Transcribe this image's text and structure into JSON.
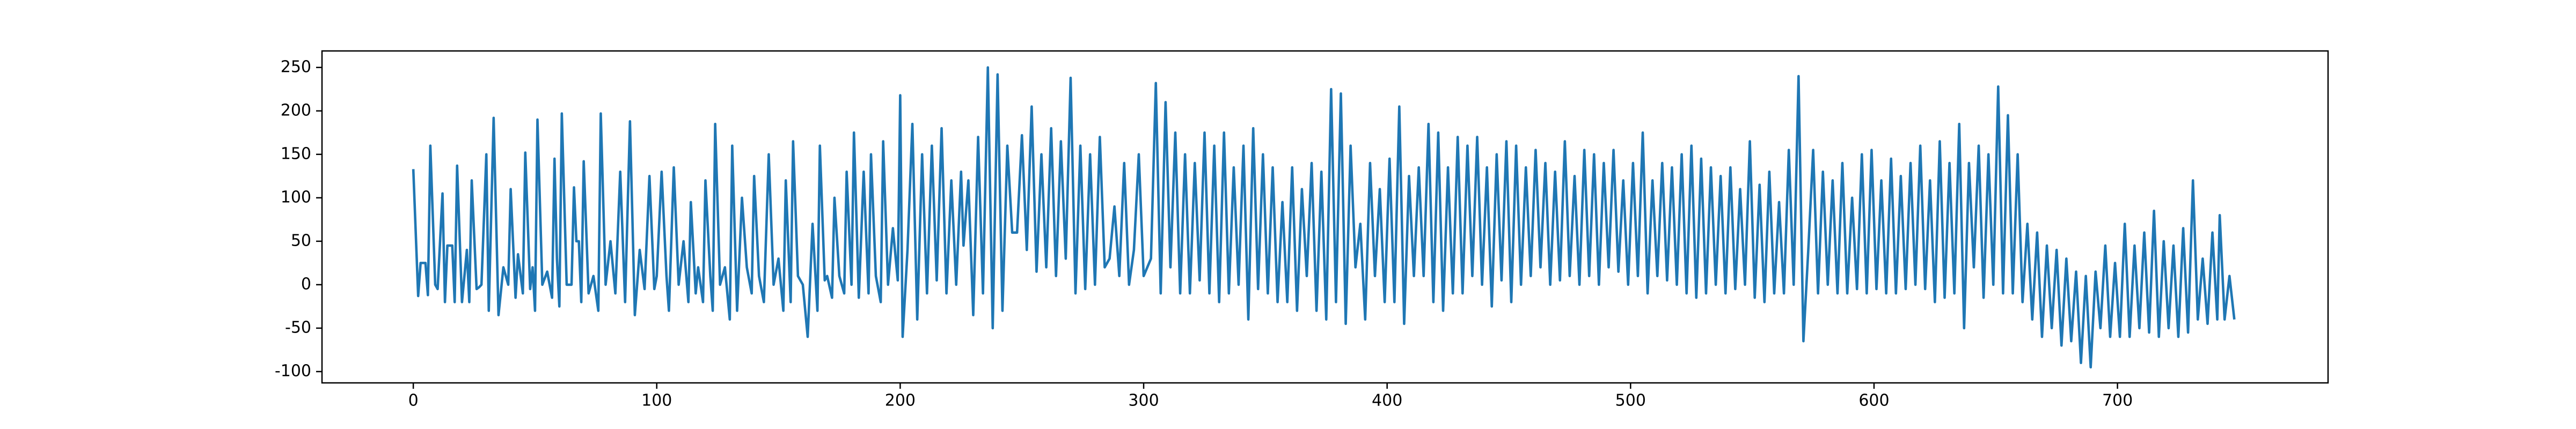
{
  "chart_data": {
    "type": "line",
    "color": "#1f77b4",
    "x": [
      0,
      2,
      3,
      5,
      6,
      7,
      9,
      10,
      12,
      13,
      14,
      16,
      17,
      18,
      20,
      22,
      23,
      24,
      26,
      27,
      28,
      30,
      31,
      33,
      35,
      37,
      39,
      40,
      42,
      43,
      45,
      46,
      48,
      49,
      50,
      51,
      53,
      55,
      57,
      58,
      59,
      60,
      61,
      63,
      65,
      66,
      67,
      68,
      69,
      70,
      72,
      74,
      76,
      77,
      79,
      81,
      83,
      85,
      87,
      89,
      91,
      93,
      95,
      97,
      99,
      100,
      102,
      104,
      105,
      107,
      109,
      111,
      113,
      114,
      116,
      117,
      119,
      120,
      122,
      123,
      124,
      126,
      128,
      130,
      131,
      133,
      135,
      137,
      139,
      140,
      142,
      144,
      146,
      148,
      150,
      152,
      153,
      155,
      156,
      158,
      160,
      162,
      164,
      166,
      167,
      169,
      170,
      172,
      173,
      175,
      177,
      178,
      180,
      181,
      183,
      185,
      187,
      188,
      190,
      192,
      193,
      195,
      197,
      199,
      200,
      201,
      203,
      205,
      207,
      209,
      211,
      213,
      215,
      217,
      219,
      221,
      223,
      225,
      226,
      228,
      230,
      232,
      234,
      236,
      238,
      240,
      242,
      244,
      246,
      248,
      250,
      252,
      254,
      256,
      258,
      260,
      262,
      264,
      266,
      268,
      270,
      272,
      274,
      276,
      278,
      280,
      282,
      284,
      286,
      288,
      290,
      292,
      294,
      296,
      298,
      300,
      303,
      305,
      307,
      309,
      311,
      313,
      315,
      317,
      319,
      321,
      323,
      325,
      327,
      329,
      331,
      333,
      335,
      337,
      339,
      341,
      343,
      345,
      347,
      349,
      351,
      353,
      355,
      357,
      359,
      361,
      363,
      365,
      367,
      369,
      371,
      373,
      375,
      377,
      379,
      381,
      383,
      385,
      387,
      389,
      391,
      393,
      395,
      397,
      399,
      401,
      403,
      405,
      407,
      409,
      411,
      413,
      415,
      417,
      419,
      421,
      423,
      425,
      427,
      429,
      431,
      433,
      435,
      437,
      439,
      441,
      443,
      445,
      447,
      449,
      451,
      453,
      455,
      457,
      459,
      461,
      463,
      465,
      467,
      469,
      471,
      473,
      475,
      477,
      479,
      481,
      483,
      485,
      487,
      489,
      491,
      493,
      495,
      497,
      499,
      501,
      503,
      505,
      507,
      509,
      511,
      513,
      515,
      517,
      519,
      521,
      523,
      525,
      527,
      529,
      531,
      533,
      535,
      537,
      539,
      541,
      543,
      545,
      547,
      549,
      551,
      553,
      555,
      557,
      559,
      561,
      563,
      565,
      567,
      569,
      571,
      573,
      575,
      577,
      579,
      581,
      583,
      585,
      587,
      589,
      591,
      593,
      595,
      597,
      599,
      601,
      603,
      605,
      607,
      609,
      611,
      613,
      615,
      617,
      619,
      621,
      623,
      625,
      627,
      629,
      631,
      633,
      635,
      637,
      639,
      641,
      643,
      645,
      647,
      649,
      651,
      653,
      655,
      657,
      659,
      661,
      663,
      665,
      667,
      669,
      671,
      673,
      675,
      677,
      679,
      681,
      683,
      685,
      687,
      689,
      691,
      693,
      695,
      697,
      699,
      701,
      703,
      705,
      707,
      709,
      711,
      713,
      715,
      717,
      719,
      721,
      723,
      725,
      727,
      729,
      731,
      733,
      735,
      737,
      739,
      741,
      742,
      744,
      746,
      748
    ],
    "values": [
      133,
      -13,
      25,
      25,
      -12,
      160,
      0,
      -5,
      105,
      -20,
      45,
      45,
      -20,
      137,
      -20,
      40,
      -20,
      120,
      -5,
      -3,
      0,
      150,
      -30,
      192,
      -35,
      20,
      0,
      110,
      -15,
      35,
      -10,
      152,
      -5,
      20,
      -30,
      190,
      0,
      15,
      -15,
      145,
      30,
      -25,
      197,
      0,
      0,
      112,
      50,
      50,
      -20,
      142,
      -10,
      10,
      -30,
      197,
      0,
      50,
      -10,
      130,
      -20,
      188,
      -35,
      40,
      -5,
      125,
      -5,
      10,
      130,
      10,
      -30,
      135,
      0,
      50,
      -20,
      95,
      -10,
      20,
      -20,
      120,
      10,
      -30,
      185,
      0,
      20,
      -40,
      160,
      -30,
      100,
      20,
      -10,
      125,
      10,
      -20,
      150,
      0,
      30,
      -30,
      120,
      -20,
      165,
      10,
      0,
      -60,
      70,
      -30,
      160,
      5,
      10,
      -15,
      100,
      10,
      -10,
      130,
      0,
      175,
      -15,
      130,
      -10,
      150,
      10,
      -20,
      165,
      0,
      65,
      5,
      218,
      -60,
      40,
      185,
      -40,
      150,
      -10,
      160,
      5,
      180,
      -10,
      120,
      0,
      130,
      45,
      120,
      -35,
      170,
      -10,
      250,
      -50,
      242,
      -30,
      160,
      60,
      60,
      172,
      40,
      205,
      15,
      150,
      20,
      180,
      10,
      165,
      30,
      238,
      -10,
      160,
      -5,
      150,
      0,
      170,
      20,
      30,
      90,
      10,
      140,
      0,
      40,
      150,
      10,
      30,
      232,
      -10,
      210,
      20,
      175,
      -10,
      150,
      -10,
      140,
      5,
      175,
      -10,
      160,
      -20,
      175,
      -10,
      135,
      0,
      160,
      -40,
      180,
      -5,
      150,
      -10,
      135,
      -20,
      95,
      -20,
      135,
      -30,
      110,
      10,
      140,
      -30,
      130,
      -40,
      225,
      -20,
      220,
      -45,
      160,
      20,
      70,
      -40,
      140,
      10,
      110,
      -20,
      145,
      -20,
      205,
      -45,
      125,
      10,
      135,
      10,
      185,
      -20,
      175,
      -30,
      135,
      -10,
      170,
      -10,
      160,
      10,
      170,
      0,
      135,
      -25,
      150,
      5,
      165,
      -20,
      160,
      0,
      135,
      10,
      155,
      20,
      140,
      0,
      130,
      5,
      165,
      10,
      125,
      0,
      155,
      10,
      150,
      0,
      140,
      20,
      155,
      15,
      120,
      0,
      140,
      10,
      175,
      -10,
      120,
      10,
      140,
      5,
      135,
      0,
      150,
      -10,
      160,
      -15,
      145,
      -10,
      135,
      0,
      125,
      -10,
      135,
      -5,
      110,
      0,
      165,
      -15,
      115,
      -20,
      130,
      -10,
      95,
      -10,
      155,
      0,
      240,
      -65,
      40,
      155,
      -10,
      130,
      0,
      120,
      -10,
      140,
      -10,
      100,
      -5,
      150,
      -10,
      155,
      -5,
      120,
      -10,
      145,
      -10,
      125,
      -5,
      140,
      0,
      160,
      -5,
      120,
      -20,
      165,
      -15,
      140,
      -10,
      185,
      -50,
      140,
      20,
      160,
      -15,
      150,
      0,
      228,
      -10,
      195,
      -10,
      150,
      -20,
      70,
      -40,
      60,
      -60,
      45,
      -50,
      40,
      -70,
      30,
      -65,
      15,
      -90,
      10,
      -95,
      15,
      -50,
      45,
      -60,
      25,
      -60,
      70,
      -60,
      45,
      -50,
      60,
      -55,
      85,
      -60,
      50,
      -50,
      45,
      -60,
      65,
      -55,
      120,
      -40,
      30,
      -45,
      60,
      -40,
      80,
      -40,
      10,
      -40
    ],
    "xlim": [
      -37.5,
      786.5
    ],
    "ylim": [
      -113,
      269
    ],
    "xticks": [
      0,
      100,
      200,
      300,
      400,
      500,
      600,
      700
    ],
    "yticks": [
      -100,
      -50,
      0,
      50,
      100,
      150,
      200,
      250
    ]
  }
}
